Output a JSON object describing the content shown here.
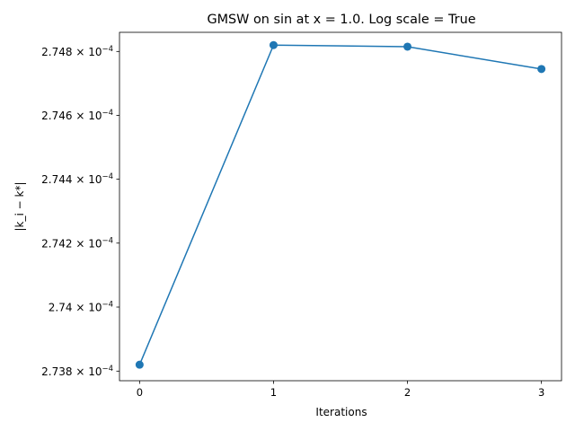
{
  "chart_data": {
    "type": "line",
    "title": "GMSW on sin at x = 1.0. Log scale = True",
    "xlabel": "Iterations",
    "ylabel": "|k_i − k*|",
    "y_scale": "log",
    "grid": false,
    "legend": "none",
    "xlim": [
      -0.15,
      3.15
    ],
    "ylim": [
      0.00027377,
      0.00027486
    ],
    "x_ticks": [
      0,
      1,
      2,
      3
    ],
    "x_tick_labels": [
      "0",
      "1",
      "2",
      "3"
    ],
    "y_ticks": [
      0.0002738,
      0.000274,
      0.0002742,
      0.0002744,
      0.0002746,
      0.0002748
    ],
    "y_tick_labels": [
      {
        "mantissa": "2.738",
        "base": "× 10",
        "exp": "−4"
      },
      {
        "mantissa": "2.74",
        "base": "× 10",
        "exp": "−4"
      },
      {
        "mantissa": "2.742",
        "base": "× 10",
        "exp": "−4"
      },
      {
        "mantissa": "2.744",
        "base": "× 10",
        "exp": "−4"
      },
      {
        "mantissa": "2.746",
        "base": "× 10",
        "exp": "−4"
      },
      {
        "mantissa": "2.748",
        "base": "× 10",
        "exp": "−4"
      }
    ],
    "series": [
      {
        "x": [
          0,
          1,
          2,
          3
        ],
        "y": [
          0.00027382,
          0.00027482,
          0.000274815,
          0.000274745
        ],
        "color": "#1f77b4",
        "marker": "circle"
      }
    ]
  }
}
